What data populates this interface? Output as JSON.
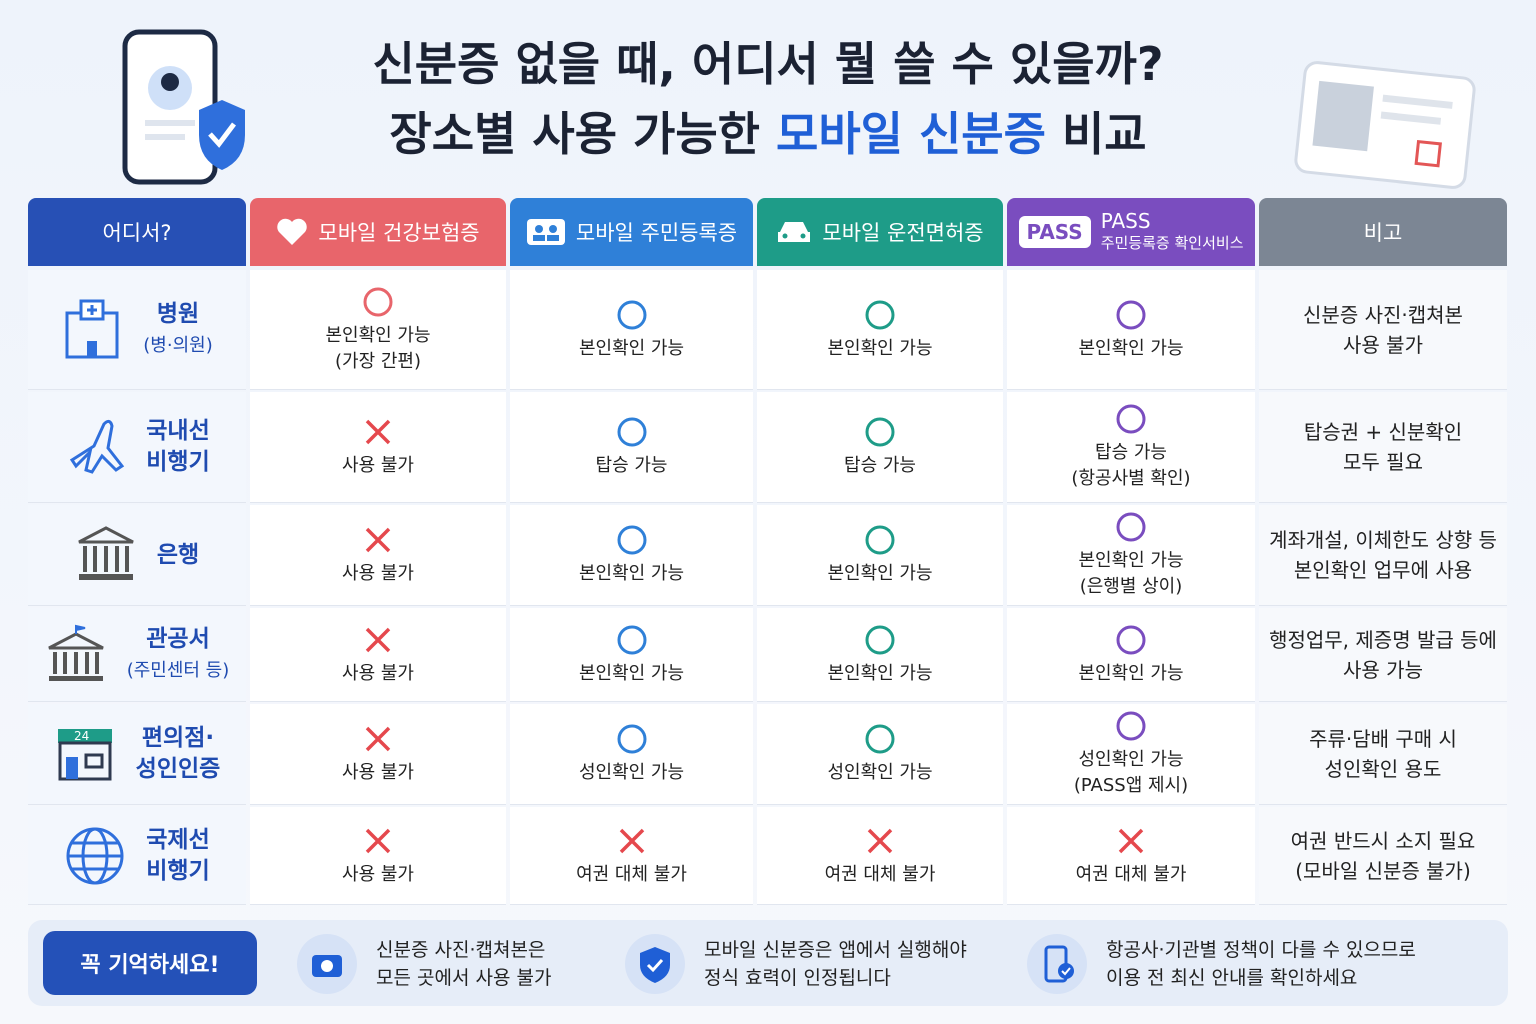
{
  "header": {
    "title_line1": "신분증 없을 때, 어디서 뭘 쓸 수 있을까?",
    "title_line2": [
      "장소별 사용 가능한",
      "모바일 신분증",
      "비교"
    ]
  },
  "table": {
    "columns": [
      {
        "label": "어디서?",
        "color": "#2750b5"
      },
      {
        "label": "모바일 건강보험증",
        "color": "#e8656b"
      },
      {
        "label": "모바일 주민등록증",
        "color": "#2f80d8"
      },
      {
        "label": "모바일 운전면허증",
        "color": "#1e9c88"
      },
      {
        "badge": "PASS",
        "label": "PASS",
        "sublabel": "주민등록증 확인서비스",
        "color": "#7a4dbf"
      },
      {
        "label": "비고",
        "color": "#7c8694"
      }
    ],
    "rows": [
      {
        "place": [
          "병원"
        ],
        "place_sub": "(병·의원)",
        "cells": [
          {
            "mark": "O",
            "text": [
              "본인확인 가능",
              "(가장 간편)"
            ]
          },
          {
            "mark": "O",
            "text": [
              "본인확인 가능"
            ]
          },
          {
            "mark": "O",
            "text": [
              "본인확인 가능"
            ]
          },
          {
            "mark": "O",
            "text": [
              "본인확인 가능"
            ]
          }
        ],
        "note": [
          "신분증 사진·캡쳐본",
          "사용 불가"
        ]
      },
      {
        "place": [
          "국내선",
          "비행기"
        ],
        "cells": [
          {
            "mark": "X",
            "text": [
              "사용 불가"
            ]
          },
          {
            "mark": "O",
            "text": [
              "탑승 가능"
            ]
          },
          {
            "mark": "O",
            "text": [
              "탑승 가능"
            ]
          },
          {
            "mark": "O",
            "text": [
              "탑승 가능",
              "(항공사별 확인)"
            ]
          }
        ],
        "note": [
          "탑승권 + 신분확인",
          "모두 필요"
        ]
      },
      {
        "place": [
          "은행"
        ],
        "cells": [
          {
            "mark": "X",
            "text": [
              "사용 불가"
            ]
          },
          {
            "mark": "O",
            "text": [
              "본인확인 가능"
            ]
          },
          {
            "mark": "O",
            "text": [
              "본인확인 가능"
            ]
          },
          {
            "mark": "O",
            "text": [
              "본인확인 가능",
              "(은행별 상이)"
            ]
          }
        ],
        "note": [
          "계좌개설, 이체한도 상향 등",
          "본인확인 업무에 사용"
        ]
      },
      {
        "place": [
          "관공서"
        ],
        "place_sub": "(주민센터 등)",
        "cells": [
          {
            "mark": "X",
            "text": [
              "사용 불가"
            ]
          },
          {
            "mark": "O",
            "text": [
              "본인확인 가능"
            ]
          },
          {
            "mark": "O",
            "text": [
              "본인확인 가능"
            ]
          },
          {
            "mark": "O",
            "text": [
              "본인확인 가능"
            ]
          }
        ],
        "note": [
          "행정업무, 제증명 발급 등에",
          "사용 가능"
        ]
      },
      {
        "place": [
          "편의점·",
          "성인인증"
        ],
        "icon_text": "24",
        "cells": [
          {
            "mark": "X",
            "text": [
              "사용 불가"
            ]
          },
          {
            "mark": "O",
            "text": [
              "성인확인 가능"
            ]
          },
          {
            "mark": "O",
            "text": [
              "성인확인 가능"
            ]
          },
          {
            "mark": "O",
            "text": [
              "성인확인 가능",
              "(PASS앱 제시)"
            ]
          }
        ],
        "note": [
          "주류·담배 구매 시",
          "성인확인 용도"
        ]
      },
      {
        "place": [
          "국제선",
          "비행기"
        ],
        "cells": [
          {
            "mark": "X",
            "text": [
              "사용 불가"
            ]
          },
          {
            "mark": "X",
            "text": [
              "여권 대체 불가"
            ]
          },
          {
            "mark": "X",
            "text": [
              "여권 대체 불가"
            ]
          },
          {
            "mark": "X",
            "text": [
              "여권 대체 불가"
            ]
          }
        ],
        "note": [
          "여권 반드시 소지 필요",
          "(모바일 신분증 불가)"
        ]
      }
    ]
  },
  "footer": {
    "label": "꼭 기억하세요!",
    "items": [
      [
        "신분증 사진·캡쳐본은",
        "모든 곳에서 사용 불가"
      ],
      [
        "모바일 신분증은 앱에서 실행해야",
        "정식 효력이 인정됩니다"
      ],
      [
        "항공사·기관별 정책이 다를 수 있으므로",
        "이용 전 최신 안내를 확인하세요"
      ]
    ]
  }
}
